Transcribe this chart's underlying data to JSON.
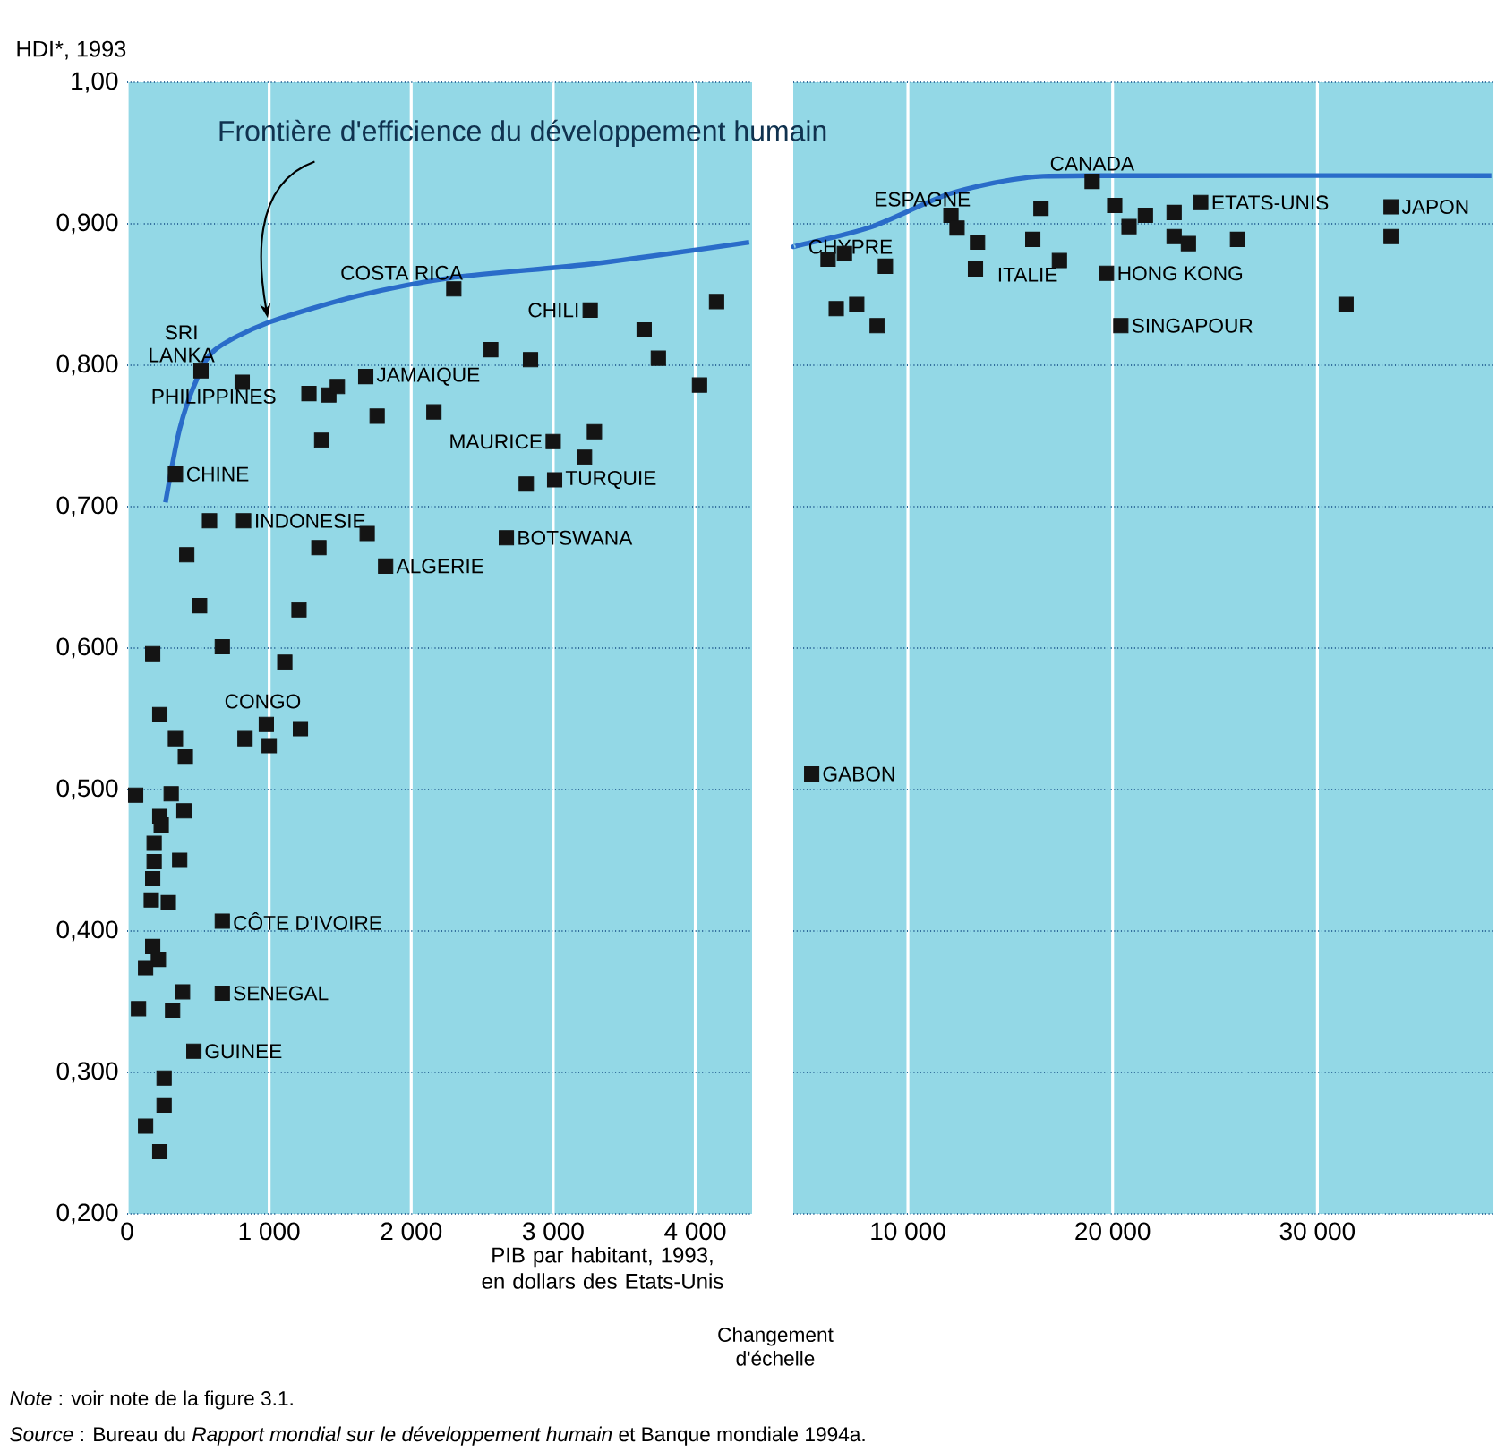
{
  "chart_data": [
    {
      "type": "scatter",
      "xlabel": "PIB par habitant, 1993, en dollars des Etats-Unis",
      "ylabel": "HDI*, 1993",
      "xlim": [
        0,
        4400
      ],
      "ylim": [
        0.2,
        1.0
      ],
      "xticks": [
        0,
        {
          "value": 1000,
          "label": "1 000"
        },
        {
          "value": 2000,
          "label": "2 000"
        },
        {
          "value": 3000,
          "label": "3 000"
        },
        {
          "value": 4000,
          "label": "4 000"
        }
      ],
      "yticks": [
        {
          "value": 0.2,
          "label": "0,200"
        },
        {
          "value": 0.3,
          "label": "0,300"
        },
        {
          "value": 0.4,
          "label": "0,400"
        },
        {
          "value": 0.5,
          "label": "0,500"
        },
        {
          "value": 0.6,
          "label": "0,600"
        },
        {
          "value": 0.7,
          "label": "0,700"
        },
        {
          "value": 0.8,
          "label": "0,800"
        },
        {
          "value": 0.9,
          "label": "0,900"
        },
        {
          "value": 1.0,
          "label": "1,00"
        }
      ],
      "grid": true,
      "series": [
        {
          "marker": "square",
          "color": "#141414",
          "x": [
            520,
            810,
            1280,
            1420,
            1480,
            1680,
            1760,
            2160,
            1370,
            2300,
            2560,
            2840,
            3260,
            3640,
            3740,
            4150,
            4030,
            3000,
            3290,
            3220,
            2810,
            3010,
            2670,
            340,
            580,
            820,
            1350,
            1690,
            1820,
            420,
            510,
            1210,
            670,
            180,
            1110,
            1220,
            980,
            830,
            1000,
            230,
            340,
            410,
            60,
            310,
            400,
            240,
            230,
            190,
            190,
            180,
            170,
            370,
            290,
            670,
            180,
            220,
            130,
            390,
            670,
            80,
            320,
            470,
            260,
            260,
            130,
            230
          ],
          "values": [
            0.796,
            0.788,
            0.78,
            0.779,
            0.785,
            0.792,
            0.764,
            0.767,
            0.747,
            0.854,
            0.811,
            0.804,
            0.839,
            0.825,
            0.805,
            0.845,
            0.786,
            0.746,
            0.753,
            0.735,
            0.716,
            0.719,
            0.678,
            0.723,
            0.69,
            0.69,
            0.671,
            0.681,
            0.658,
            0.666,
            0.63,
            0.627,
            0.601,
            0.596,
            0.59,
            0.543,
            0.546,
            0.536,
            0.531,
            0.553,
            0.536,
            0.523,
            0.496,
            0.497,
            0.485,
            0.475,
            0.481,
            0.462,
            0.449,
            0.437,
            0.422,
            0.45,
            0.42,
            0.407,
            0.389,
            0.38,
            0.374,
            0.357,
            0.356,
            0.345,
            0.344,
            0.315,
            0.296,
            0.277,
            0.262,
            0.244
          ]
        },
        {
          "type": "line",
          "name": "Frontière d'efficience du développement humain",
          "color": "#2a6cc9",
          "x": [
            270,
            370,
            490,
            620,
            990,
            1620,
            2290,
            3300,
            4380
          ],
          "values": [
            0.703,
            0.755,
            0.79,
            0.811,
            0.83,
            0.849,
            0.862,
            0.872,
            0.887
          ]
        }
      ],
      "annotations": [
        {
          "text": "SRI LANKA",
          "x": 520,
          "y": 0.796
        },
        {
          "text": "PHILIPPINES",
          "x": 810,
          "y": 0.788
        },
        {
          "text": "CHINE",
          "x": 340,
          "y": 0.723
        },
        {
          "text": "INDONESIE",
          "x": 820,
          "y": 0.69
        },
        {
          "text": "JAMAIQUE",
          "x": 1680,
          "y": 0.792
        },
        {
          "text": "COSTA RICA",
          "x": 2300,
          "y": 0.854
        },
        {
          "text": "CHILI",
          "x": 3260,
          "y": 0.839
        },
        {
          "text": "MAURICE",
          "x": 3000,
          "y": 0.746
        },
        {
          "text": "TURQUIE",
          "x": 3010,
          "y": 0.719
        },
        {
          "text": "BOTSWANA",
          "x": 2670,
          "y": 0.678
        },
        {
          "text": "ALGERIE",
          "x": 1820,
          "y": 0.658
        },
        {
          "text": "CONGO",
          "x": 980,
          "y": 0.546
        },
        {
          "text": "CÔTE D'IVOIRE",
          "x": 670,
          "y": 0.407
        },
        {
          "text": "SENEGAL",
          "x": 670,
          "y": 0.356
        },
        {
          "text": "GUINEE",
          "x": 470,
          "y": 0.315
        },
        "*Note* : voir note de la figure 3.1.",
        "*Source* : Bureau du *Rapport mondial sur le développement humain* et Banque mondiale 1994a."
      ]
    },
    {
      "type": "scatter",
      "xlim": [
        4400,
        38600
      ],
      "ylim": [
        0.2,
        1.0
      ],
      "xticks": [
        {
          "value": 10000,
          "label": "10 000"
        },
        {
          "value": 20000,
          "label": "20 000"
        },
        {
          "value": 30000,
          "label": "30 000"
        }
      ],
      "yticks": [
        0.2,
        0.3,
        0.4,
        0.5,
        0.6,
        0.7,
        0.8,
        0.9,
        1.0
      ],
      "tick_labels": "x",
      "grid": true,
      "series": [
        {
          "marker": "square",
          "color": "#141414",
          "x": [
            6100,
            6900,
            8900,
            6500,
            7500,
            8500,
            12100,
            12400,
            13400,
            13300,
            16500,
            16100,
            17400,
            19000,
            20100,
            20800,
            21600,
            23000,
            23000,
            23700,
            24300,
            26100,
            19700,
            20400,
            31400,
            33600,
            33600,
            5300
          ],
          "values": [
            0.875,
            0.879,
            0.87,
            0.84,
            0.843,
            0.828,
            0.906,
            0.897,
            0.887,
            0.868,
            0.911,
            0.889,
            0.874,
            0.93,
            0.913,
            0.898,
            0.906,
            0.908,
            0.891,
            0.886,
            0.915,
            0.889,
            0.865,
            0.828,
            0.843,
            0.912,
            0.891,
            0.511
          ]
        },
        {
          "type": "line",
          "color": "#2a6cc9",
          "x": [
            4440,
            4760,
            8240,
            12000,
            15500,
            19000,
            38500
          ],
          "values": [
            0.884,
            0.885,
            0.898,
            0.921,
            0.932,
            0.934,
            0.934
          ]
        }
      ],
      "annotations": [
        {
          "text": "CHYPRE",
          "x": 6100,
          "y": 0.875
        },
        {
          "text": "ESPAGNE",
          "x": 12100,
          "y": 0.906
        },
        {
          "text": "CANADA",
          "x": 19000,
          "y": 0.93
        },
        {
          "text": "ETATS-UNIS",
          "x": 24300,
          "y": 0.915
        },
        {
          "text": "ITALIE",
          "x": 17400,
          "y": 0.874
        },
        {
          "text": "HONG KONG",
          "x": 19700,
          "y": 0.865
        },
        {
          "text": "SINGAPOUR",
          "x": 20400,
          "y": 0.828
        },
        {
          "text": "JAPON",
          "x": 33600,
          "y": 0.912
        },
        {
          "text": "GABON",
          "x": 5300,
          "y": 0.511
        },
        "Changement d'échelle"
      ]
    }
  ]
}
